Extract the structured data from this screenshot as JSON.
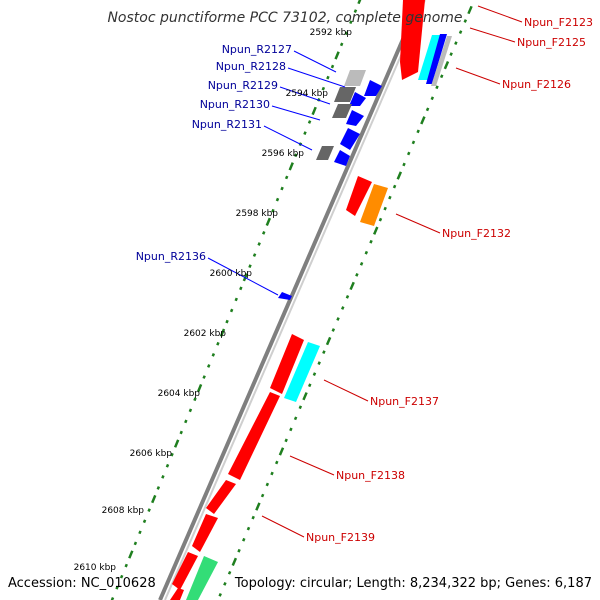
{
  "title": "Nostoc punctiforme PCC 73102, complete genome",
  "accession": "Accession: NC_010628",
  "summary": "Topology: circular; Length: 8,234,322 bp; Genes: 6,187",
  "colors": {
    "backbone": "#7f7f7f",
    "tick": "#1f7f1f",
    "forward_label": "#cc0000",
    "reverse_label": "#000099",
    "cds": "#ff0000",
    "rna": "#00ffff",
    "orange": "#ff8c00",
    "green": "#33dd77",
    "blue": "#0000ff",
    "gray_dark": "#666666",
    "gray_light": "#bbbbbb"
  },
  "kbp_labels": [
    {
      "label": "2592 kbp",
      "kbp": 2592
    },
    {
      "label": "2594 kbp",
      "kbp": 2594
    },
    {
      "label": "2596 kbp",
      "kbp": 2596
    },
    {
      "label": "2598 kbp",
      "kbp": 2598
    },
    {
      "label": "2600 kbp",
      "kbp": 2600
    },
    {
      "label": "2602 kbp",
      "kbp": 2602
    },
    {
      "label": "2604 kbp",
      "kbp": 2604
    },
    {
      "label": "2606 kbp",
      "kbp": 2606
    },
    {
      "label": "2608 kbp",
      "kbp": 2608
    },
    {
      "label": "2610 kbp",
      "kbp": 2610
    }
  ],
  "reverse_genes": [
    {
      "name": "Npun_R2127"
    },
    {
      "name": "Npun_R2128"
    },
    {
      "name": "Npun_R2129"
    },
    {
      "name": "Npun_R2130"
    },
    {
      "name": "Npun_R2131"
    },
    {
      "name": "Npun_R2136"
    }
  ],
  "forward_genes": [
    {
      "name": "Npun_F2123"
    },
    {
      "name": "Npun_F2125"
    },
    {
      "name": "Npun_F2126"
    },
    {
      "name": "Npun_F2132"
    },
    {
      "name": "Npun_F2137"
    },
    {
      "name": "Npun_F2138"
    },
    {
      "name": "Npun_F2139"
    }
  ]
}
